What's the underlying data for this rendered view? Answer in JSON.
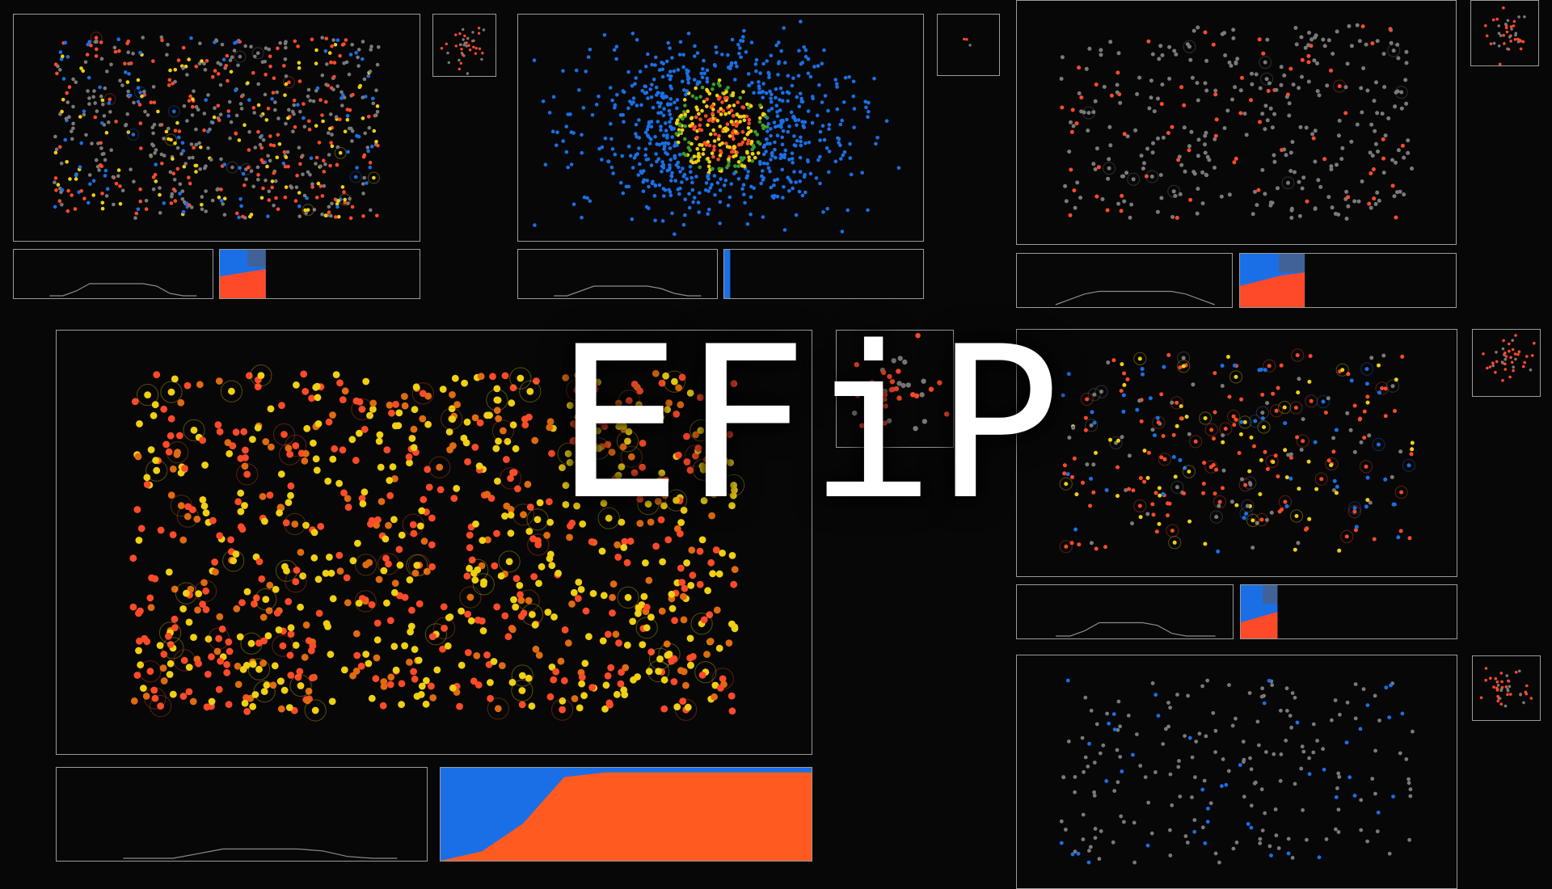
{
  "title": "EFiP",
  "colors": {
    "background": "#070707",
    "frame": "#9a9a9a",
    "blue": "#1a6fe6",
    "red": "#ff4a2a",
    "orange": "#ff5a20",
    "yellow": "#f0d012",
    "gray": "#7a7a7a"
  },
  "palettes": {
    "mixed": [
      "#7a7a7a",
      "#7a7a7a",
      "#7a7a7a",
      "#ff4a2a",
      "#ff4a2a",
      "#1a6fe6",
      "#f0d012"
    ],
    "blue": [
      "#1a6fe6"
    ],
    "warm": [
      "#ff4a2a",
      "#ff4a2a",
      "#f0d012",
      "#f0d012",
      "#e06a10"
    ],
    "gray": [
      "#7a7a7a",
      "#7a7a7a",
      "#7a7a7a",
      "#7a7a7a",
      "#ff4a2a"
    ],
    "spread": [
      "#ff4a2a",
      "#ff4a2a",
      "#1a6fe6",
      "#f0d012",
      "#7a7a7a"
    ],
    "sparse": [
      "#7a7a7a",
      "#7a7a7a",
      "#7a7a7a",
      "#1a6fe6"
    ],
    "cluster": [
      "#ff4a2a",
      "#ff4a2a",
      "#7a7a7a"
    ]
  },
  "simulations": [
    {
      "id": "sim-1",
      "palette": "mixed",
      "count": 700,
      "spread": "uniform",
      "mini": "cluster",
      "highlight_fraction": 0.02
    },
    {
      "id": "sim-2",
      "palette": "blue",
      "count": 900,
      "spread": "core",
      "mini": "cluster",
      "highlight_fraction": 0.0
    },
    {
      "id": "sim-3",
      "palette": "gray",
      "count": 360,
      "spread": "uniform",
      "mini": "cluster",
      "highlight_fraction": 0.03
    },
    {
      "id": "sim-4",
      "palette": "warm",
      "count": 900,
      "spread": "uniform",
      "mini": "cluster",
      "highlight_fraction": 0.1
    },
    {
      "id": "sim-5",
      "palette": "spread",
      "count": 300,
      "spread": "uniform",
      "mini": "cluster",
      "highlight_fraction": 0.25
    },
    {
      "id": "sim-6",
      "palette": "sparse",
      "count": 220,
      "spread": "uniform",
      "mini": "cluster",
      "highlight_fraction": 0.0
    }
  ],
  "chart_data": [
    {
      "type": "area",
      "id": "dist-sim-1",
      "series": [
        {
          "values": [
            0,
            0,
            0.1,
            0.25,
            0.25,
            0.25,
            0.25,
            0.25,
            0.2,
            0.05,
            0,
            0
          ]
        }
      ]
    },
    {
      "type": "area",
      "id": "frac-sim-1",
      "series": [
        {
          "name": "blue",
          "values": [
            0.55,
            0.5,
            0.45,
            0.4
          ]
        },
        {
          "name": "red",
          "values": [
            0.45,
            0.5,
            0.55,
            0.6
          ]
        }
      ]
    },
    {
      "type": "area",
      "id": "dist-sim-2",
      "series": [
        {
          "values": [
            0,
            0,
            0.1,
            0.2,
            0.2,
            0.2,
            0.2,
            0.2,
            0.15,
            0.05,
            0,
            0
          ]
        }
      ]
    },
    {
      "type": "area",
      "id": "frac-sim-2",
      "series": [
        {
          "name": "blue",
          "values": [
            1.0,
            1.0,
            1.0
          ]
        }
      ]
    },
    {
      "type": "area",
      "id": "dist-sim-3",
      "series": [
        {
          "values": [
            0,
            0.1,
            0.2,
            0.25,
            0.25,
            0.25,
            0.25,
            0.25,
            0.25,
            0.2,
            0.1,
            0
          ]
        }
      ]
    },
    {
      "type": "area",
      "id": "frac-sim-3",
      "series": [
        {
          "name": "blue",
          "values": [
            0.6,
            0.5,
            0.4,
            0.35
          ]
        },
        {
          "name": "red",
          "values": [
            0.4,
            0.5,
            0.6,
            0.65
          ]
        }
      ]
    },
    {
      "type": "area",
      "id": "dist-sim-4",
      "series": [
        {
          "values": [
            0,
            0,
            0,
            0.05,
            0.1,
            0.1,
            0.1,
            0.1,
            0.08,
            0.02,
            0,
            0
          ]
        }
      ]
    },
    {
      "type": "area",
      "id": "frac-sim-4",
      "series": [
        {
          "name": "blue",
          "values": [
            1.0,
            0.9,
            0.6,
            0.1,
            0.05,
            0.05,
            0.05,
            0.05,
            0.05,
            0.05
          ]
        },
        {
          "name": "orange",
          "values": [
            0.0,
            0.1,
            0.4,
            0.9,
            0.95,
            0.95,
            0.95,
            0.95,
            0.95,
            0.95
          ]
        }
      ]
    },
    {
      "type": "area",
      "id": "dist-sim-5",
      "series": [
        {
          "values": [
            0,
            0,
            0.1,
            0.25,
            0.25,
            0.25,
            0.25,
            0.2,
            0.05,
            0,
            0,
            0
          ]
        }
      ]
    },
    {
      "type": "area",
      "id": "frac-sim-5",
      "series": [
        {
          "name": "blue",
          "values": [
            0.7,
            0.6,
            0.5
          ]
        },
        {
          "name": "red",
          "values": [
            0.3,
            0.4,
            0.5
          ]
        }
      ]
    }
  ]
}
